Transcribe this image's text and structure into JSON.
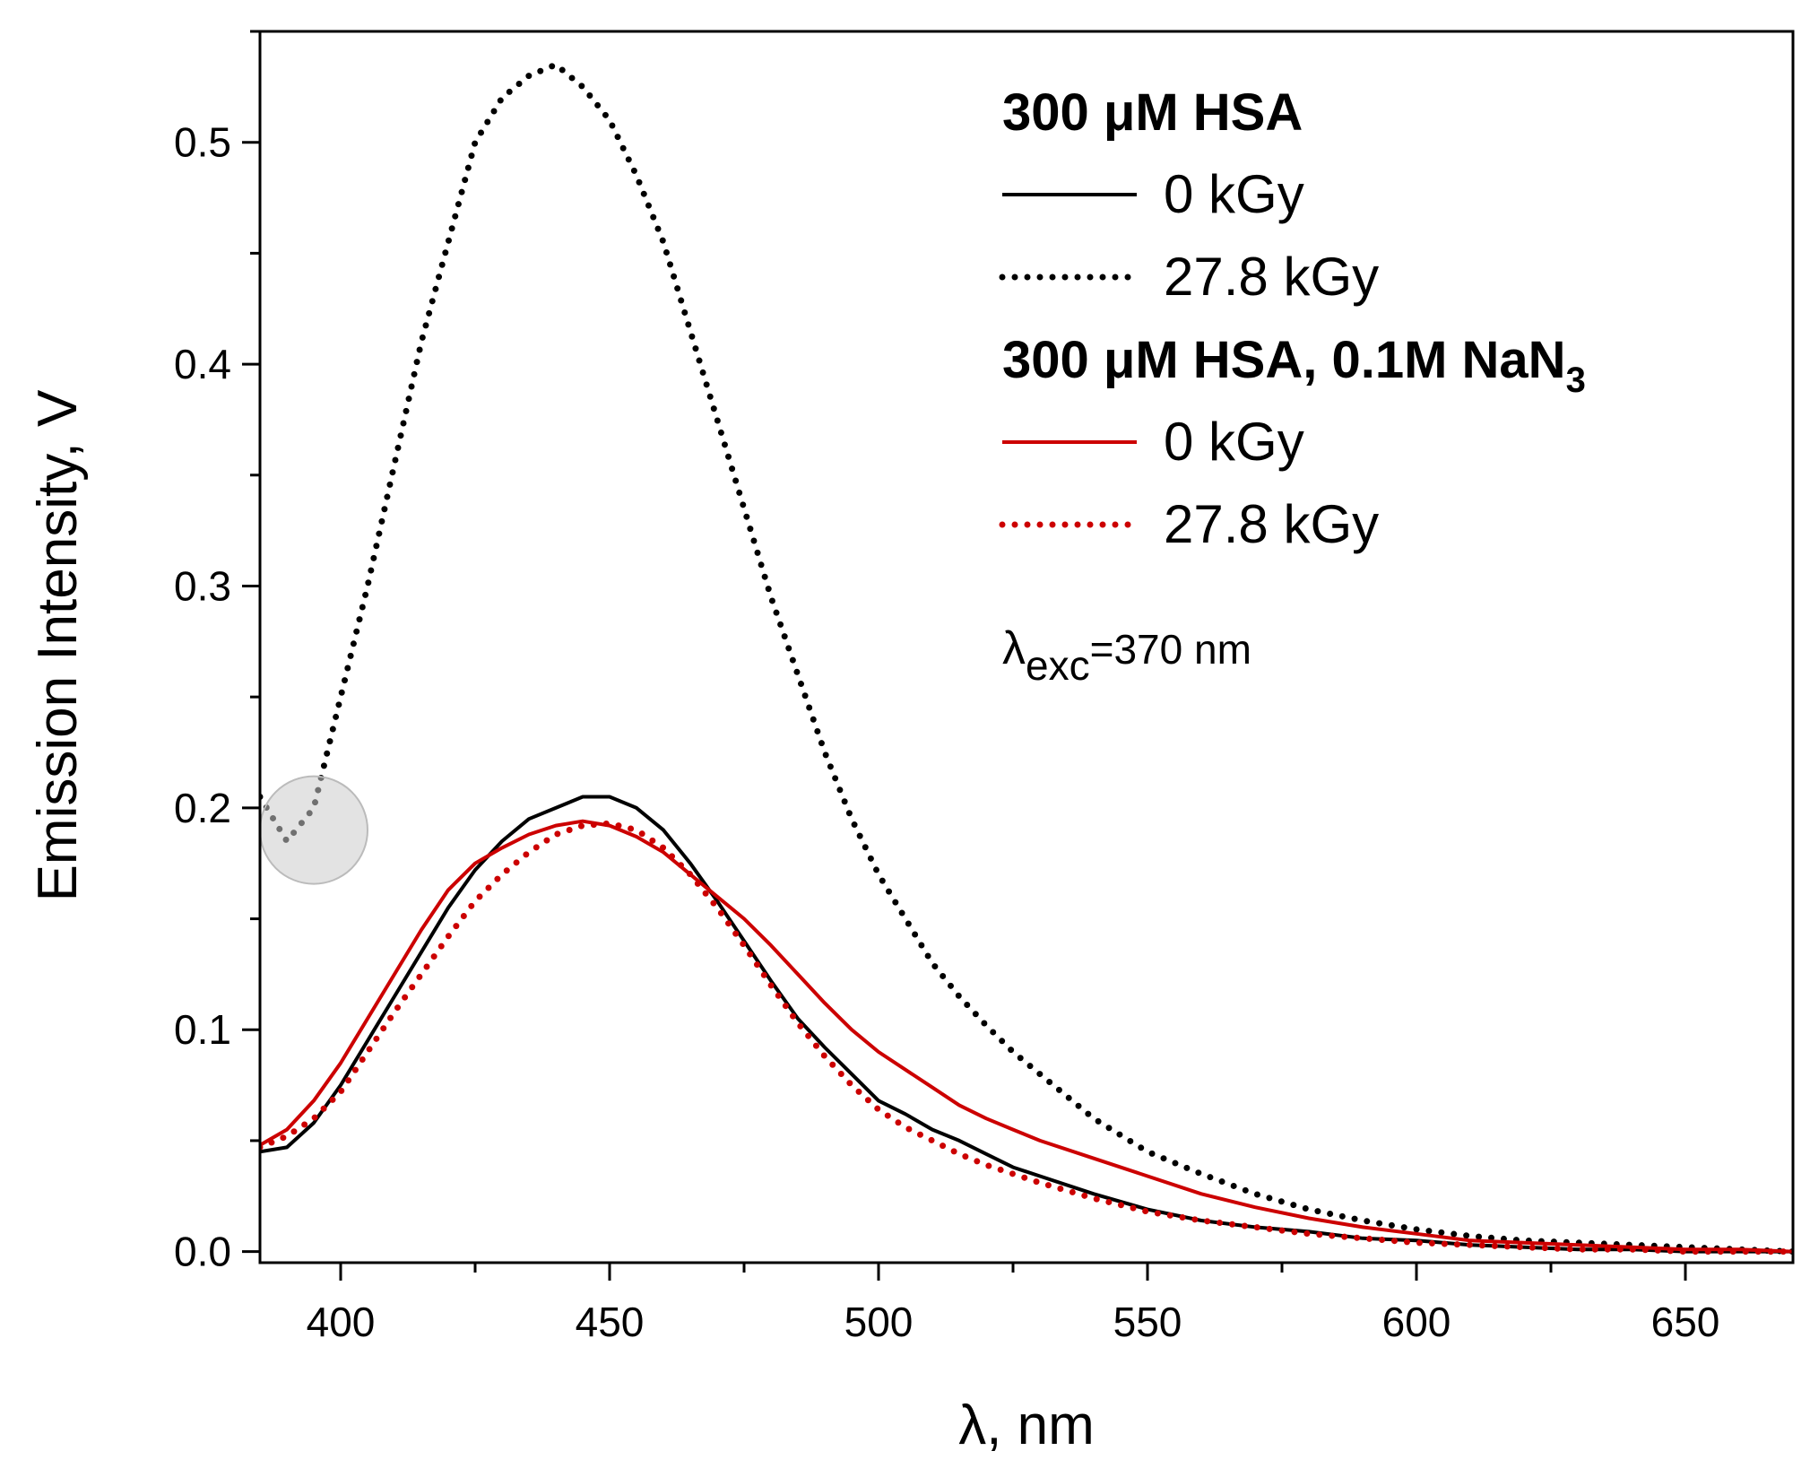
{
  "chart_data": {
    "type": "line",
    "xlabel": "λ, nm",
    "ylabel": "Emission Intensity, V",
    "xlim": [
      385,
      670
    ],
    "ylim": [
      -0.005,
      0.55
    ],
    "xticks": [
      400,
      450,
      500,
      550,
      600,
      650
    ],
    "xtick_labels": [
      "400",
      "450",
      "500",
      "550",
      "600",
      "650"
    ],
    "yticks": [
      0.0,
      0.1,
      0.2,
      0.3,
      0.4,
      0.5
    ],
    "ytick_labels": [
      "0.0",
      "0.1",
      "0.2",
      "0.3",
      "0.4",
      "0.5"
    ],
    "legend_groups": [
      {
        "title": "300 μM HSA",
        "title_parts": [
          {
            "text": "300 μM HSA",
            "sub": false
          }
        ],
        "entries": [
          {
            "label": "0 kGy",
            "series_index": 0
          },
          {
            "label": "27.8 kGy",
            "series_index": 1
          }
        ]
      },
      {
        "title": "300 μM HSA, 0.1M NaN3",
        "title_parts": [
          {
            "text": "300 μM HSA, 0.1M NaN",
            "sub": false
          },
          {
            "text": "3",
            "sub": true
          }
        ],
        "entries": [
          {
            "label": "0 kGy",
            "series_index": 2
          },
          {
            "label": "27.8 kGy",
            "series_index": 3
          }
        ]
      }
    ],
    "annotation": {
      "symbol": "λ",
      "subscript": "exc",
      "text": "=370 nm"
    },
    "highlight_marker": {
      "x": 395,
      "y": 0.19,
      "color": "#cccccc"
    },
    "series": [
      {
        "name": "300 μM HSA, 0 kGy",
        "color": "#000000",
        "style": "solid",
        "x": [
          385,
          390,
          395,
          400,
          405,
          410,
          415,
          420,
          425,
          430,
          435,
          440,
          445,
          450,
          455,
          460,
          465,
          470,
          475,
          480,
          485,
          490,
          495,
          500,
          505,
          510,
          515,
          520,
          525,
          530,
          540,
          550,
          560,
          570,
          580,
          590,
          600,
          610,
          620,
          630,
          640,
          650,
          660,
          670
        ],
        "y": [
          0.045,
          0.047,
          0.058,
          0.075,
          0.095,
          0.115,
          0.135,
          0.155,
          0.172,
          0.185,
          0.195,
          0.2,
          0.205,
          0.205,
          0.2,
          0.19,
          0.175,
          0.158,
          0.14,
          0.122,
          0.105,
          0.092,
          0.08,
          0.068,
          0.062,
          0.055,
          0.05,
          0.044,
          0.038,
          0.034,
          0.026,
          0.019,
          0.014,
          0.011,
          0.009,
          0.006,
          0.005,
          0.003,
          0.002,
          0.001,
          0.001,
          0.0,
          0.0,
          0.0
        ]
      },
      {
        "name": "300 μM HSA, 27.8 kGy",
        "color": "#000000",
        "style": "dotted",
        "x": [
          385,
          390,
          395,
          400,
          405,
          410,
          415,
          420,
          425,
          430,
          435,
          440,
          445,
          450,
          455,
          460,
          465,
          470,
          475,
          480,
          485,
          490,
          495,
          500,
          505,
          510,
          515,
          520,
          525,
          530,
          540,
          550,
          560,
          570,
          580,
          590,
          600,
          610,
          620,
          630,
          640,
          650,
          660,
          670
        ],
        "y": [
          0.205,
          0.185,
          0.2,
          0.25,
          0.3,
          0.355,
          0.41,
          0.455,
          0.5,
          0.52,
          0.53,
          0.535,
          0.525,
          0.51,
          0.485,
          0.455,
          0.415,
          0.375,
          0.335,
          0.295,
          0.26,
          0.225,
          0.195,
          0.17,
          0.15,
          0.13,
          0.115,
          0.102,
          0.09,
          0.08,
          0.06,
          0.045,
          0.035,
          0.026,
          0.019,
          0.014,
          0.01,
          0.007,
          0.005,
          0.004,
          0.003,
          0.002,
          0.001,
          0.0
        ]
      },
      {
        "name": "300 μM HSA, 0.1M NaN3, 0 kGy",
        "color": "#cc0000",
        "style": "solid",
        "x": [
          385,
          390,
          395,
          400,
          405,
          410,
          415,
          420,
          425,
          430,
          435,
          440,
          445,
          450,
          455,
          460,
          465,
          470,
          475,
          480,
          485,
          490,
          495,
          500,
          505,
          510,
          515,
          520,
          525,
          530,
          540,
          550,
          560,
          570,
          580,
          590,
          600,
          610,
          620,
          630,
          640,
          650,
          660,
          670
        ],
        "y": [
          0.048,
          0.055,
          0.068,
          0.085,
          0.105,
          0.125,
          0.145,
          0.163,
          0.175,
          0.182,
          0.188,
          0.192,
          0.194,
          0.192,
          0.187,
          0.18,
          0.17,
          0.16,
          0.15,
          0.138,
          0.125,
          0.112,
          0.1,
          0.09,
          0.082,
          0.074,
          0.066,
          0.06,
          0.055,
          0.05,
          0.042,
          0.034,
          0.026,
          0.02,
          0.015,
          0.011,
          0.008,
          0.005,
          0.004,
          0.003,
          0.002,
          0.001,
          0.001,
          0.0
        ]
      },
      {
        "name": "300 μM HSA, 0.1M NaN3, 27.8 kGy",
        "color": "#cc0000",
        "style": "dotted",
        "x": [
          385,
          390,
          395,
          400,
          405,
          410,
          415,
          420,
          425,
          430,
          435,
          440,
          445,
          450,
          455,
          460,
          465,
          470,
          475,
          480,
          485,
          490,
          495,
          500,
          505,
          510,
          515,
          520,
          525,
          530,
          540,
          550,
          560,
          570,
          580,
          590,
          600,
          610,
          620,
          630,
          640,
          650,
          660,
          670
        ],
        "y": [
          0.047,
          0.052,
          0.06,
          0.072,
          0.09,
          0.108,
          0.125,
          0.142,
          0.158,
          0.17,
          0.18,
          0.188,
          0.192,
          0.193,
          0.19,
          0.182,
          0.17,
          0.155,
          0.138,
          0.12,
          0.103,
          0.088,
          0.075,
          0.064,
          0.056,
          0.05,
          0.044,
          0.039,
          0.035,
          0.031,
          0.024,
          0.018,
          0.014,
          0.011,
          0.008,
          0.006,
          0.004,
          0.003,
          0.002,
          0.001,
          0.001,
          0.0,
          0.0,
          0.0
        ]
      }
    ]
  }
}
